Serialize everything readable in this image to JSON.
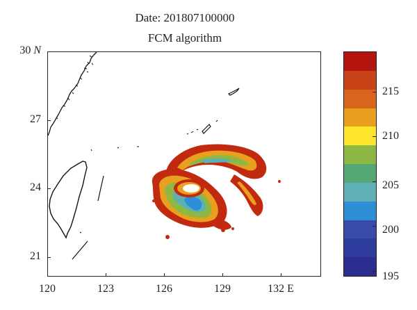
{
  "header": {
    "title": "Date: 201807100000",
    "subtitle": "FCM algorithm"
  },
  "map": {
    "lon_range": [
      120,
      134
    ],
    "lat_range": [
      20.2,
      30
    ],
    "lon_ticks": [
      "120",
      "123",
      "126",
      "129",
      "132 E"
    ],
    "lat_ticks": [
      "30 N",
      "27",
      "24",
      "21"
    ],
    "land_outline_color": "#111111",
    "storm_center_lon": 127.5,
    "storm_center_lat": 23.7
  },
  "colorbar": {
    "ticks": [
      "215",
      "210",
      "205",
      "200",
      "195"
    ],
    "min": 194.5,
    "max": 219.5,
    "colors": [
      "#2b2e8e",
      "#2f3d9e",
      "#3a4aa8",
      "#2f8fd6",
      "#5fb0b4",
      "#55a876",
      "#8cb843",
      "#ffe52b",
      "#e8a01e",
      "#d9641b",
      "#c94318",
      "#b5150f"
    ]
  }
}
